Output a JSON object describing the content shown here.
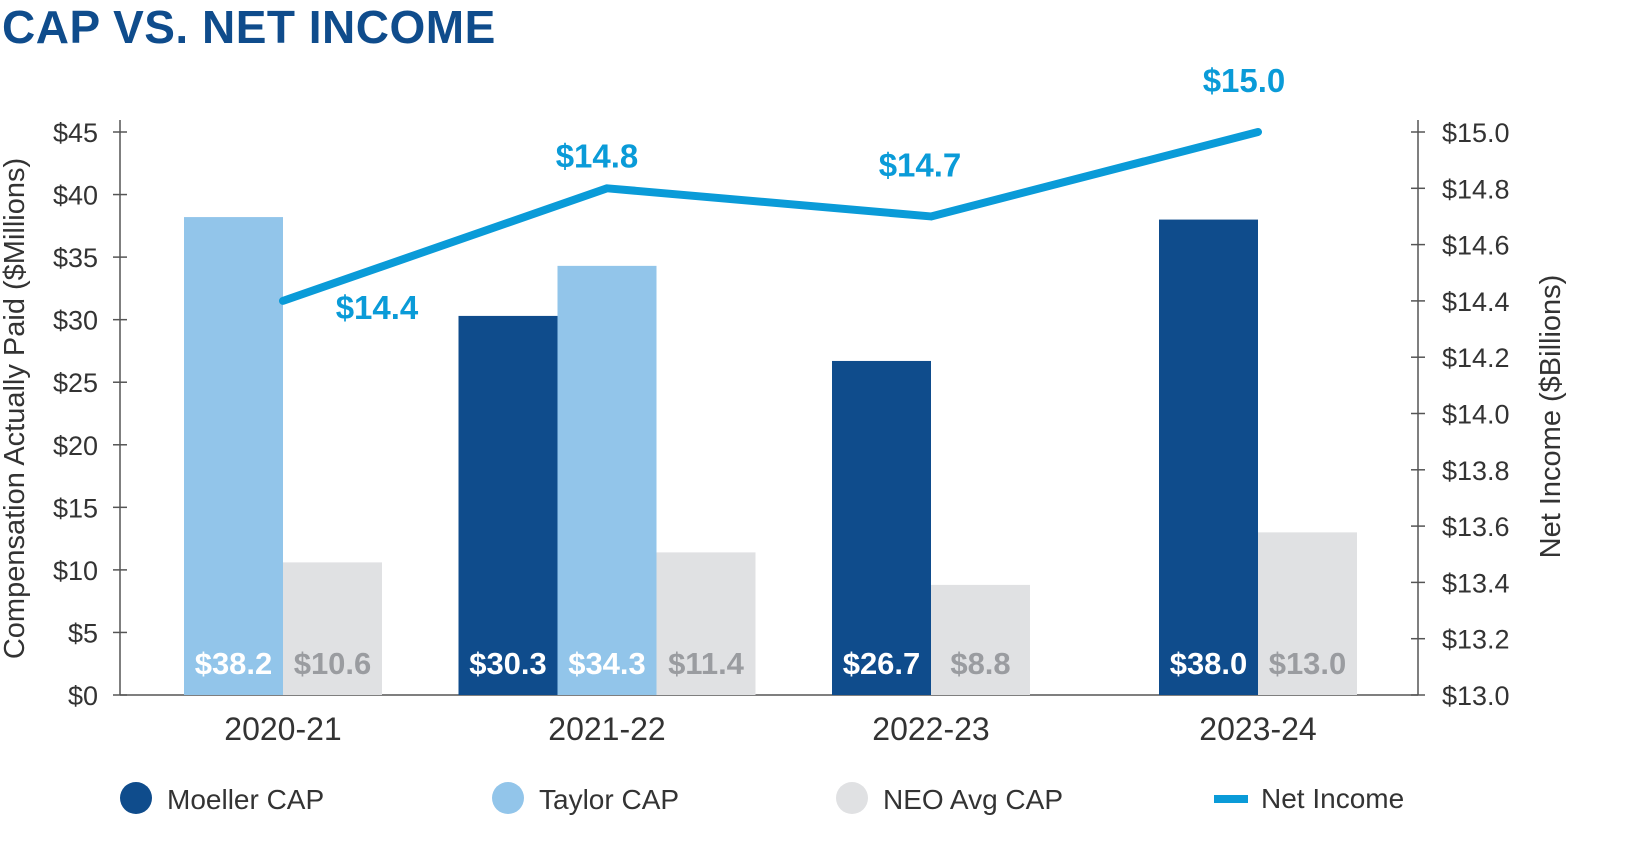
{
  "title": "CAP VS. NET INCOME",
  "chart_data": {
    "type": "bar",
    "title": "CAP VS. NET INCOME",
    "categories": [
      "2020-21",
      "2021-22",
      "2022-23",
      "2023-24"
    ],
    "ylabel": "Compensation Actually Paid ($Millions)",
    "y2label": "Net Income ($Billions)",
    "ylim": [
      0,
      45
    ],
    "y2lim": [
      13.0,
      15.0
    ],
    "yticks": [
      0,
      5,
      10,
      15,
      20,
      25,
      30,
      35,
      40,
      45
    ],
    "ytick_labels": [
      "$0",
      "$5",
      "$10",
      "$15",
      "$20",
      "$25",
      "$30",
      "$35",
      "$40",
      "$45"
    ],
    "y2ticks": [
      13.0,
      13.2,
      13.4,
      13.6,
      13.8,
      14.0,
      14.2,
      14.4,
      14.6,
      14.8,
      15.0
    ],
    "y2tick_labels": [
      "$13.0",
      "$13.2",
      "$13.4",
      "$13.6",
      "$13.8",
      "$14.0",
      "$14.2",
      "$14.4",
      "$14.6",
      "$14.8",
      "$15.0"
    ],
    "grid": false,
    "legend_position": "bottom",
    "series": [
      {
        "name": "Moeller CAP",
        "color": "#0f4c8c",
        "label_color": "#ffffff",
        "values": [
          null,
          30.3,
          26.7,
          38.0
        ],
        "labels": [
          null,
          "$30.3",
          "$26.7",
          "$38.0"
        ]
      },
      {
        "name": "Taylor CAP",
        "color": "#92c5ea",
        "label_color": "#ffffff",
        "values": [
          38.2,
          34.3,
          null,
          null
        ],
        "labels": [
          "$38.2",
          "$34.3",
          null,
          null
        ]
      },
      {
        "name": "NEO Avg CAP",
        "color": "#e0e1e3",
        "label_color": "#9a9ca0",
        "values": [
          10.6,
          11.4,
          8.8,
          13.0
        ],
        "labels": [
          "$10.6",
          "$11.4",
          "$8.8",
          "$13.0"
        ]
      }
    ],
    "line_series": {
      "name": "Net Income",
      "color": "#0a9bd8",
      "axis": "right",
      "values": [
        14.4,
        14.8,
        14.7,
        15.0
      ],
      "labels": [
        "$14.4",
        "$14.8",
        "$14.7",
        "$15.0"
      ]
    }
  }
}
